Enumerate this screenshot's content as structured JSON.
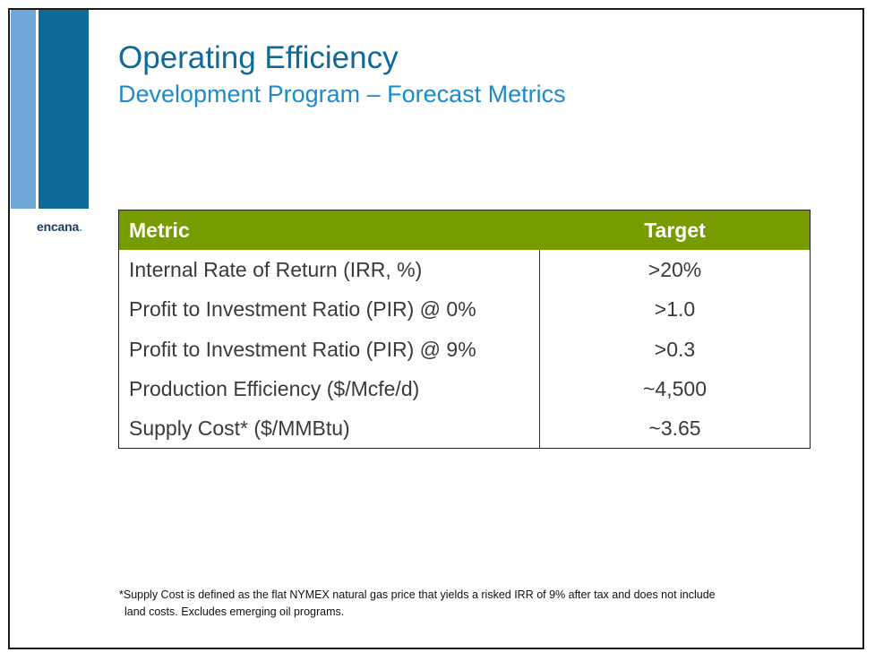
{
  "brand": {
    "logo_text": "encana",
    "logo_mark": "."
  },
  "slide": {
    "title": "Operating Efficiency",
    "subtitle": "Development Program – Forecast Metrics"
  },
  "table": {
    "headers": {
      "metric": "Metric",
      "target": "Target"
    },
    "rows": [
      {
        "metric": "Internal Rate of Return (IRR, %)",
        "target": ">20%"
      },
      {
        "metric": "Profit to Investment Ratio (PIR) @ 0%",
        "target": ">1.0"
      },
      {
        "metric": "Profit to Investment Ratio (PIR) @ 9%",
        "target": ">0.3"
      },
      {
        "metric": "Production Efficiency ($/Mcfe/d)",
        "target": "~4,500"
      },
      {
        "metric": "Supply Cost* ($/MMBtu)",
        "target": "~3.65"
      }
    ]
  },
  "footnote": {
    "line1": "*Supply Cost is defined as the flat NYMEX natural gas price that yields a risked IRR of 9% after tax and does not include",
    "line2": "land costs. Excludes emerging oil programs."
  },
  "colors": {
    "header_green": "#779c00",
    "title_blue": "#0f6a97",
    "subtitle_blue": "#1d8bc7",
    "bar_light": "#6fa8d8",
    "bar_dark": "#0f6a97"
  }
}
